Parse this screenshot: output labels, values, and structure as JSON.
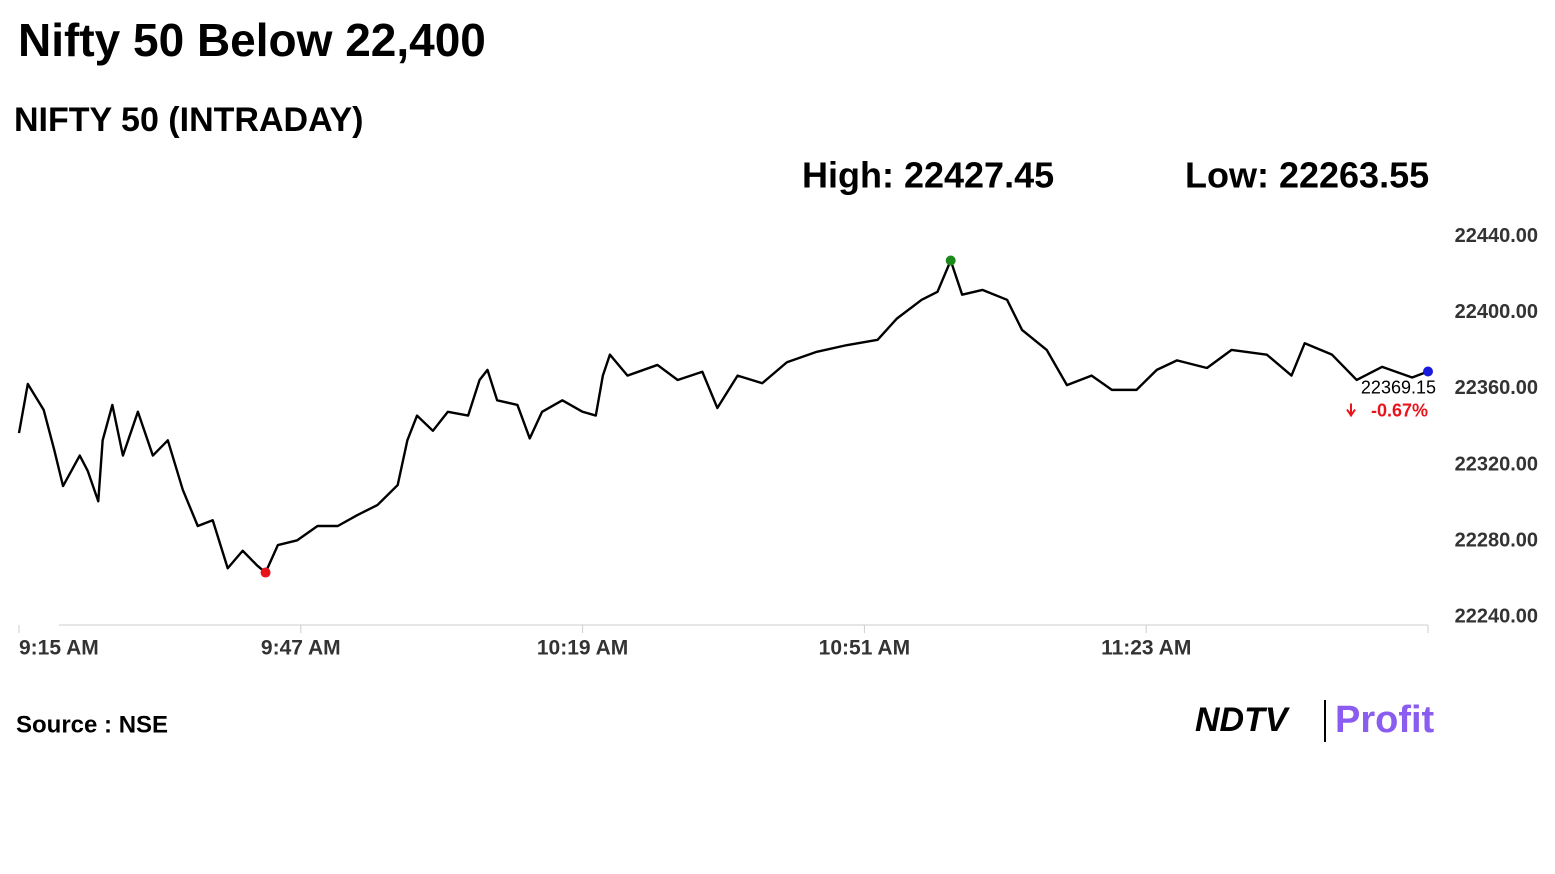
{
  "chart_data": {
    "type": "line",
    "title": "Nifty 50 Below 22,400",
    "subtitle": "NIFTY 50 (INTRADAY)",
    "high_label": "High: 22427.45",
    "low_label": "Low: 22263.55",
    "last_label": "22369.15",
    "change_label": "-0.67%",
    "source": "Source : NSE",
    "logo": {
      "left": "NDTV",
      "right": "Profit"
    },
    "x": [
      555,
      556,
      557.8,
      559,
      560,
      561.9,
      562.8,
      564,
      564.5,
      565.6,
      566.8,
      568.5,
      570.2,
      571.9,
      573.6,
      575.3,
      577,
      578.7,
      580.4,
      582.1,
      583,
      584.4,
      586.6,
      588.9,
      591.2,
      593.4,
      595.7,
      598,
      599.1,
      600.2,
      602,
      603.7,
      606,
      607.3,
      608.2,
      609.3,
      611.6,
      613,
      614.4,
      616.7,
      619,
      620.5,
      621.3,
      622.1,
      624.1,
      627.5,
      629.8,
      632.6,
      634.3,
      636.6,
      639.4,
      642.2,
      645.6,
      649,
      652.5,
      654.7,
      657.5,
      659.3,
      660.8,
      662.1,
      664.4,
      667.2,
      668.9,
      671.7,
      674,
      676.8,
      679.1,
      681.9,
      684.2,
      686.5,
      689.9,
      692.7,
      696.7,
      699.5,
      701,
      704.1,
      706.9,
      709.8,
      713.2,
      715
    ],
    "series": [
      {
        "name": "NIFTY 50",
        "color": "#000000",
        "values": [
          22336.8,
          22362.6,
          22349,
          22328,
          22309,
          22325,
          22317,
          22301,
          22333,
          22351.6,
          22325,
          22348,
          22325,
          22333,
          22307,
          22288,
          22291,
          22265.8,
          22275,
          22267,
          22263.55,
          22278,
          22280.5,
          22288,
          22288,
          22293.7,
          22299,
          22309.5,
          22333,
          22346,
          22338,
          22348,
          22346,
          22364.7,
          22370,
          22354,
          22351.6,
          22334,
          22348,
          22354,
          22348,
          22346,
          22367,
          22378,
          22367,
          22372.6,
          22364.7,
          22369,
          22350,
          22367,
          22363,
          22374,
          22379.5,
          22383,
          22385.8,
          22397,
          22406.8,
          22411,
          22427.45,
          22409.5,
          22412,
          22406.8,
          22391,
          22380.5,
          22362,
          22367,
          22359.5,
          22359.5,
          22370,
          22375,
          22371,
          22380.5,
          22378,
          22367,
          22384,
          22378,
          22364.7,
          22371.6,
          22366,
          22369.15
        ]
      }
    ],
    "xlim": [
      555,
      715
    ],
    "xticks": [
      {
        "value": 555,
        "label": "9:15 AM"
      },
      {
        "value": 587,
        "label": "9:47 AM"
      },
      {
        "value": 619,
        "label": "10:19 AM"
      },
      {
        "value": 651,
        "label": "10:51 AM"
      },
      {
        "value": 683,
        "label": "11:23 AM"
      }
    ],
    "ylim": [
      22236,
      22444
    ],
    "yticks": [
      {
        "value": 22240,
        "label": "22240.00"
      },
      {
        "value": 22280,
        "label": "22280.00"
      },
      {
        "value": 22320,
        "label": "22320.00"
      },
      {
        "value": 22360,
        "label": "22360.00"
      },
      {
        "value": 22400,
        "label": "22400.00"
      },
      {
        "value": 22440,
        "label": "22440.00"
      }
    ],
    "high_color": "#1a8a1a",
    "low_color": "#e8141c",
    "last_color": "#1a1adc",
    "change_color": "#e8141c"
  }
}
